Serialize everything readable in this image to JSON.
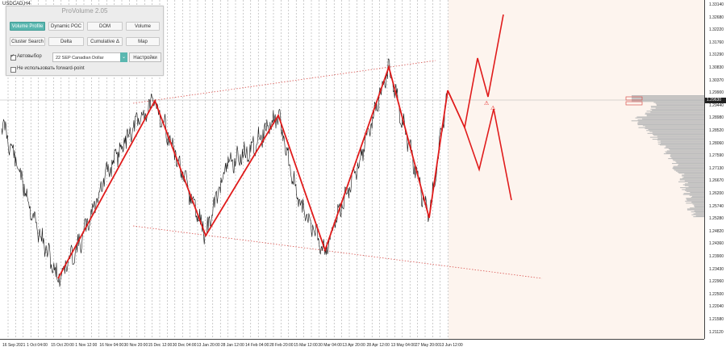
{
  "chart": {
    "symbol": "USDCAD,H4",
    "current_price": "1.29630",
    "price_ticks": [
      "1.33140",
      "1.32680",
      "1.32220",
      "1.31760",
      "1.31290",
      "1.30830",
      "1.30370",
      "1.29900",
      "1.29440",
      "1.28980",
      "1.28520",
      "1.28060",
      "1.27590",
      "1.27130",
      "1.26670",
      "1.26200",
      "1.25740",
      "1.25280",
      "1.24820",
      "1.24360",
      "1.23900",
      "1.23430",
      "1.22960",
      "1.22500",
      "1.22040",
      "1.21580",
      "1.21120"
    ],
    "time_ticks": [
      "16 Sep 2021",
      "1 Oct 04:00",
      "15 Oct 20:00",
      "1 Nov 12:00",
      "16 Nov 04:00",
      "30 Nov 20:00",
      "15 Dec 12:00",
      "30 Dec 04:00",
      "13 Jan 20:00",
      "28 Jan 12:00",
      "14 Feb 04:00",
      "28 Feb 20:00",
      "15 Mar 12:00",
      "30 Mar 04:00",
      "13 Apr 20:00",
      "28 Apr 12:00",
      "13 May 04:00",
      "27 May 20:00",
      "13 Jun 12:00"
    ]
  },
  "panel": {
    "title": "ProVolume 2.05",
    "buttons": [
      {
        "label": "Volume Profile",
        "active": true
      },
      {
        "label": "Dynamic POC",
        "active": false
      },
      {
        "label": "DOM",
        "active": false
      },
      {
        "label": "Volume",
        "active": false
      },
      {
        "label": "Cluster Search",
        "active": false
      },
      {
        "label": "Delta",
        "active": false
      },
      {
        "label": "Cumulative Δ",
        "active": false
      },
      {
        "label": "Map",
        "active": false
      }
    ],
    "auto_label": "Автовыбор",
    "auto_checked": true,
    "select_value": "22 SEP Canadian Dollar",
    "settings_label": "Настройки",
    "forward_label": "Не использовать forward-point",
    "forward_checked": false
  }
}
